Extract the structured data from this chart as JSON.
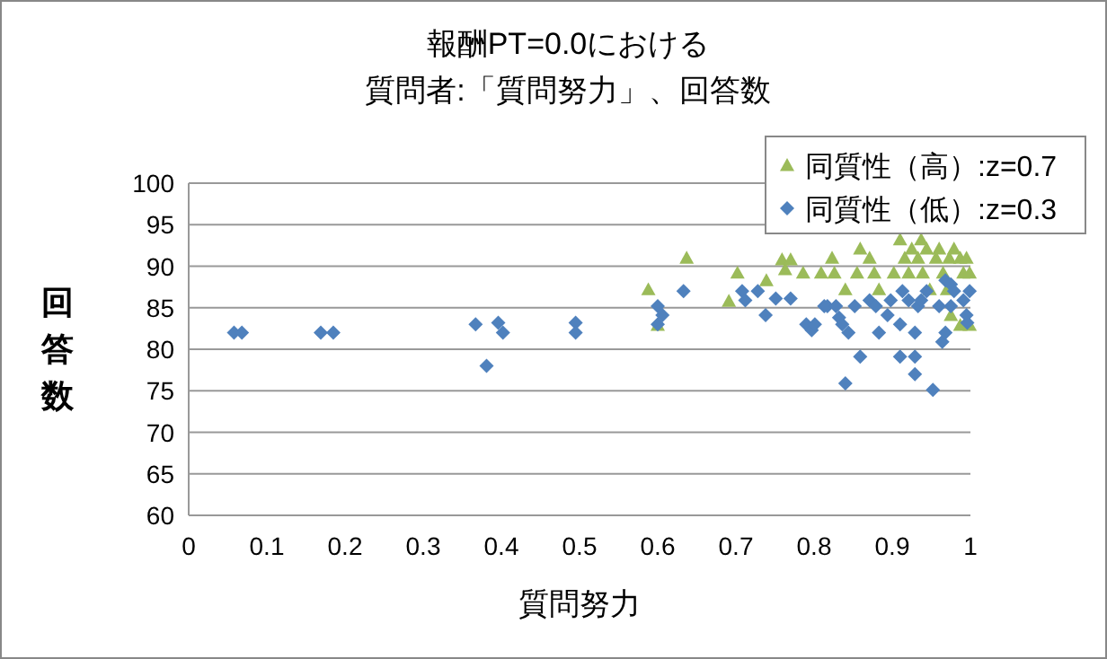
{
  "chart_data": {
    "type": "scatter",
    "title": "報酬PT=0.0における",
    "subtitle": "質問者:「質問努力」、回答数",
    "xlabel": "質問努力",
    "ylabel": "回答数",
    "xlim": [
      0,
      1
    ],
    "xticks": [
      0,
      0.1,
      0.2,
      0.3,
      0.4,
      0.5,
      0.6,
      0.7,
      0.8,
      0.9,
      1
    ],
    "ylim": [
      60,
      100
    ],
    "yticks": [
      60,
      65,
      70,
      75,
      80,
      85,
      90,
      95,
      100
    ],
    "grid": "y",
    "legend": "top right",
    "series": [
      {
        "name": "同質性（高）:z=0.7",
        "color": "#9bbb59",
        "marker": "triangle",
        "x": [
          0.588,
          0.6,
          0.637,
          0.691,
          0.702,
          0.739,
          0.759,
          0.763,
          0.77,
          0.786,
          0.809,
          0.823,
          0.826,
          0.84,
          0.855,
          0.859,
          0.871,
          0.877,
          0.883,
          0.902,
          0.91,
          0.916,
          0.921,
          0.925,
          0.933,
          0.937,
          0.939,
          0.944,
          0.948,
          0.956,
          0.96,
          0.965,
          0.97,
          0.973,
          0.975,
          0.979,
          0.987,
          0.991,
          0.995,
          0.999,
          0.987,
          0.999
        ],
        "values": [
          87.2,
          82.9,
          91.0,
          85.8,
          89.2,
          88.3,
          90.8,
          89.6,
          90.8,
          89.2,
          89.2,
          91.0,
          89.2,
          87.2,
          89.2,
          92.1,
          91.0,
          89.2,
          87.2,
          89.2,
          93.2,
          91.0,
          89.2,
          92.1,
          91.0,
          93.2,
          89.2,
          92.1,
          87.2,
          91.0,
          92.1,
          89.2,
          87.2,
          91.0,
          84.1,
          92.1,
          91.0,
          89.2,
          91.0,
          89.2,
          82.9,
          82.9
        ]
      },
      {
        "name": "同質性（低）:z=0.3",
        "color": "#4f81bd",
        "marker": "diamond",
        "x": [
          0.058,
          0.068,
          0.169,
          0.185,
          0.367,
          0.381,
          0.396,
          0.402,
          0.495,
          0.495,
          0.6,
          0.6,
          0.606,
          0.633,
          0.708,
          0.712,
          0.728,
          0.738,
          0.751,
          0.77,
          0.79,
          0.797,
          0.801,
          0.813,
          0.817,
          0.828,
          0.832,
          0.836,
          0.844,
          0.852,
          0.859,
          0.84,
          0.871,
          0.879,
          0.883,
          0.894,
          0.898,
          0.91,
          0.91,
          0.913,
          0.921,
          0.929,
          0.929,
          0.929,
          0.933,
          0.937,
          0.944,
          0.952,
          0.96,
          0.964,
          0.968,
          0.968,
          0.975,
          0.975,
          0.979,
          0.991,
          0.995,
          0.996,
          0.999
        ],
        "values": [
          82.0,
          82.0,
          82.0,
          82.0,
          83.0,
          78.0,
          83.2,
          82.0,
          83.2,
          82.0,
          83.0,
          85.2,
          84.1,
          87.0,
          87.0,
          85.9,
          87.0,
          84.1,
          86.1,
          86.1,
          83.0,
          82.3,
          83.0,
          85.2,
          85.2,
          85.2,
          83.8,
          83.0,
          82.0,
          85.2,
          79.1,
          75.9,
          85.9,
          85.2,
          82.0,
          84.1,
          85.9,
          83.0,
          79.1,
          87.0,
          85.9,
          82.0,
          79.1,
          77.0,
          85.2,
          85.9,
          87.0,
          75.1,
          85.2,
          80.9,
          82.0,
          88.3,
          87.8,
          85.2,
          87.0,
          85.9,
          84.1,
          83.2,
          87.0
        ]
      }
    ]
  }
}
